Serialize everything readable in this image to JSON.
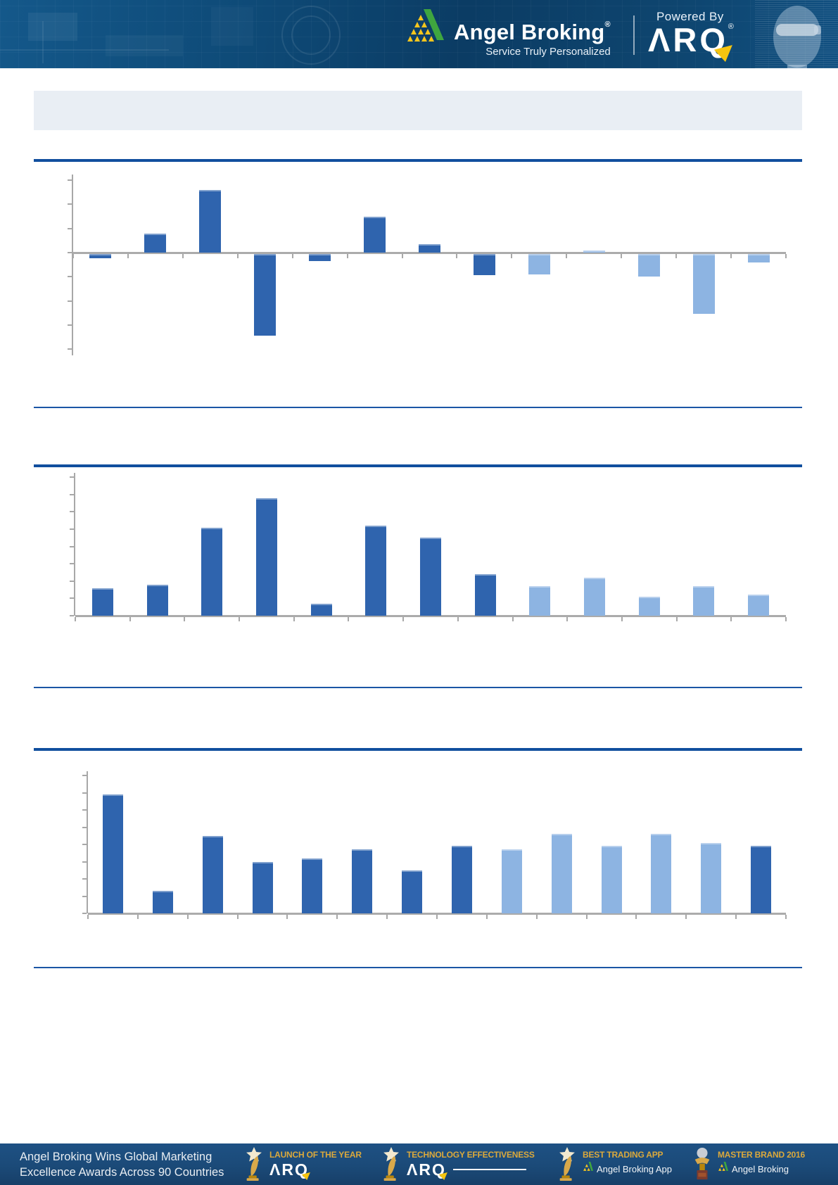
{
  "header": {
    "brand": "Angel Broking",
    "brand_reg": "®",
    "tagline": "Service Truly Personalized",
    "powered_by": "Powered By",
    "arq": "ARQ",
    "arq_reg": "®"
  },
  "title_box": {
    "text": ""
  },
  "colors": {
    "bar_dark": "#2f64ae",
    "bar_light": "#8db4e2",
    "rule_thick": "#114f9e",
    "rule_thin": "#1b55a5",
    "axis_gray": "#a8a8a8",
    "baseline_gray": "#ababab",
    "header_navy": "#0e4a77",
    "footer_navy": "#1b4a78",
    "gold": "#dba93c",
    "title_box_bg": "#e9eef4"
  },
  "chart_data": [
    {
      "id": "chart-top",
      "type": "bar",
      "title": "",
      "note": "axis tick labels and category labels are not visible in the image; values estimated in gridline units (1 unit = one horizontal gridline step)",
      "n_bars": 13,
      "values": [
        -0.2,
        0.8,
        2.6,
        -3.4,
        -0.3,
        1.5,
        0.35,
        -0.9,
        -0.85,
        0.1,
        -0.95,
        -2.5,
        -0.35
      ],
      "bar_styles": [
        "dark",
        "dark",
        "dark",
        "dark",
        "dark",
        "dark",
        "dark",
        "dark",
        "light",
        "light",
        "light",
        "light",
        "light"
      ],
      "ylim": [
        -4,
        3
      ],
      "gridline_step": 1,
      "legend": "none visible",
      "xlabel": "",
      "ylabel": ""
    },
    {
      "id": "chart-middle",
      "type": "bar",
      "title": "",
      "note": "axis tick labels and category labels are not visible in the image; values estimated in gridline units",
      "n_bars": 13,
      "values": [
        1.6,
        1.8,
        5.1,
        6.8,
        0.7,
        5.2,
        4.5,
        2.4,
        1.7,
        2.2,
        1.1,
        1.7,
        1.2
      ],
      "bar_styles": [
        "dark",
        "dark",
        "dark",
        "dark",
        "dark",
        "dark",
        "dark",
        "dark",
        "light",
        "light",
        "light",
        "light",
        "light"
      ],
      "ylim": [
        0,
        8
      ],
      "gridline_step": 1,
      "legend": "none visible",
      "xlabel": "",
      "ylabel": ""
    },
    {
      "id": "chart-bottom",
      "type": "bar",
      "title": "",
      "note": "axis tick labels and category labels are not visible in the image; values estimated in gridline units",
      "n_bars": 14,
      "values": [
        6.9,
        1.3,
        4.5,
        3.0,
        3.2,
        3.7,
        2.5,
        3.9,
        3.7,
        4.6,
        3.9,
        4.6,
        4.1,
        3.9
      ],
      "bar_styles": [
        "dark",
        "dark",
        "dark",
        "dark",
        "dark",
        "dark",
        "dark",
        "dark",
        "light",
        "light",
        "light",
        "light",
        "light",
        "dark"
      ],
      "ylim": [
        0,
        8
      ],
      "gridline_step": 1,
      "legend": "none visible",
      "xlabel": "",
      "ylabel": ""
    }
  ],
  "footer": {
    "headline_line1": "Angel Broking Wins Global Marketing",
    "headline_line2": "Excellence Awards Across 90 Countries",
    "awards": [
      {
        "title": "LAUNCH OF THE YEAR",
        "subtitle": "ARQ",
        "subtitle_style": "arq"
      },
      {
        "title": "TECHNOLOGY EFFECTIVENESS",
        "subtitle": "ARQ",
        "subtitle_style": "arq"
      },
      {
        "title": "BEST TRADING APP",
        "subtitle": "Angel Broking App",
        "subtitle_style": "angel"
      },
      {
        "title": "MASTER BRAND 2016",
        "subtitle": "Angel Broking",
        "subtitle_style": "angel"
      }
    ]
  }
}
